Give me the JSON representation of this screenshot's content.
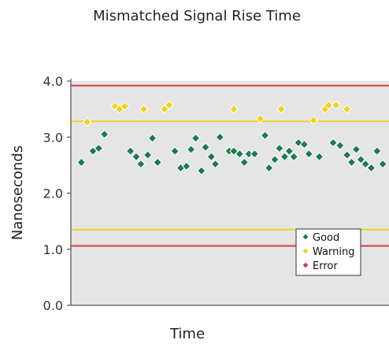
{
  "chart_data": {
    "type": "scatter",
    "title": "Mismatched Signal Rise Time",
    "xlabel": "Time",
    "ylabel": "Nanoseconds",
    "ylim": [
      0,
      4.0
    ],
    "xlim": [
      0,
      54
    ],
    "y_ticks": [
      0.0,
      1.0,
      2.0,
      3.0,
      4.0
    ],
    "y_tick_labels": [
      "0.0",
      "1.0",
      "2.0",
      "3.0",
      "4.0"
    ],
    "grid": false,
    "legend_position": "bottom-right",
    "reference_lines": [
      {
        "kind": "error",
        "value": 3.92,
        "color": "#d93a3a"
      },
      {
        "kind": "warning",
        "value": 3.28,
        "color": "#f0d21f"
      },
      {
        "kind": "warning",
        "value": 1.35,
        "color": "#f0d21f"
      },
      {
        "kind": "error",
        "value": 1.06,
        "color": "#d93a3a"
      }
    ],
    "series": [
      {
        "name": "Good",
        "color": "#1e7a4f",
        "points": [
          [
            1,
            2.55
          ],
          [
            3,
            2.75
          ],
          [
            4,
            2.8
          ],
          [
            5,
            3.05
          ],
          [
            9.5,
            2.75
          ],
          [
            10.5,
            2.65
          ],
          [
            11.3,
            2.52
          ],
          [
            12.5,
            2.68
          ],
          [
            13.3,
            2.98
          ],
          [
            14.2,
            2.55
          ],
          [
            17.2,
            2.75
          ],
          [
            18.2,
            2.45
          ],
          [
            19.2,
            2.48
          ],
          [
            20,
            2.78
          ],
          [
            20.8,
            2.98
          ],
          [
            21.8,
            2.4
          ],
          [
            22.5,
            2.82
          ],
          [
            23.5,
            2.65
          ],
          [
            24.2,
            2.52
          ],
          [
            25,
            3.0
          ],
          [
            26.6,
            2.75
          ],
          [
            27.4,
            2.75
          ],
          [
            28.4,
            2.7
          ],
          [
            29.2,
            2.55
          ],
          [
            30,
            2.7
          ],
          [
            31,
            2.7
          ],
          [
            32.8,
            3.03
          ],
          [
            33.5,
            2.45
          ],
          [
            34.5,
            2.6
          ],
          [
            35.3,
            2.8
          ],
          [
            36.2,
            2.65
          ],
          [
            37,
            2.75
          ],
          [
            37.8,
            2.65
          ],
          [
            38.6,
            2.9
          ],
          [
            39.6,
            2.87
          ],
          [
            40.4,
            2.7
          ],
          [
            42.2,
            2.65
          ],
          [
            44.6,
            2.9
          ],
          [
            45.8,
            2.85
          ],
          [
            47,
            2.68
          ],
          [
            47.8,
            2.55
          ],
          [
            48.6,
            2.78
          ],
          [
            49.4,
            2.6
          ],
          [
            50.2,
            2.52
          ],
          [
            51.2,
            2.45
          ],
          [
            52.2,
            2.75
          ],
          [
            53.2,
            2.52
          ]
        ]
      },
      {
        "name": "Warning",
        "color": "#f0d21f",
        "points": [
          [
            2,
            3.27
          ],
          [
            6.8,
            3.55
          ],
          [
            7.6,
            3.5
          ],
          [
            8.5,
            3.55
          ],
          [
            11.8,
            3.5
          ],
          [
            15.4,
            3.5
          ],
          [
            16.2,
            3.57
          ],
          [
            27.4,
            3.5
          ],
          [
            32,
            3.33
          ],
          [
            35.6,
            3.5
          ],
          [
            41.2,
            3.3
          ],
          [
            43.2,
            3.5
          ],
          [
            43.8,
            3.57
          ],
          [
            45.1,
            3.57
          ],
          [
            47,
            3.5
          ]
        ]
      },
      {
        "name": "Error",
        "color": "#d93a3a",
        "points": []
      }
    ],
    "legend": [
      "Good",
      "Warning",
      "Error"
    ]
  }
}
